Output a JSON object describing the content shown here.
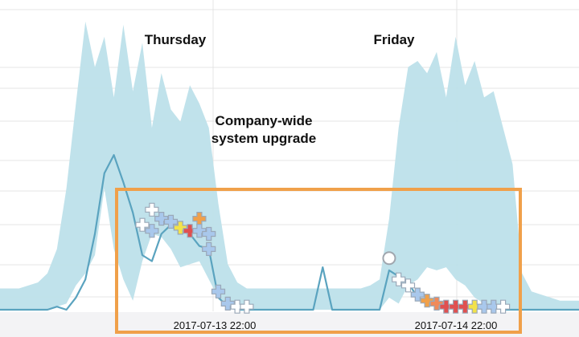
{
  "chart_data": {
    "type": "area",
    "title": "",
    "xlabel": "",
    "ylabel": "",
    "grid": true,
    "x_tick_labels": [
      "2017-07-13 22:00",
      "2017-07-14 22:00"
    ],
    "annotations": {
      "day_labels": [
        "Thursday",
        "Friday"
      ],
      "event_label_lines": [
        "Company-wide",
        "system upgrade"
      ]
    },
    "colors": {
      "band": "#bde0ea",
      "line": "#5aa3bf",
      "highlight_box": "#f0a04a",
      "grid": "#e4e4e4",
      "markers": [
        "#ffffff",
        "#a9c8ec",
        "#f2e24a",
        "#f0a04a",
        "#e05050",
        "#f08a5a"
      ]
    },
    "note": "",
    "band_upper": [
      [
        0,
        7
      ],
      [
        1,
        7
      ],
      [
        2,
        7
      ],
      [
        3,
        8
      ],
      [
        4,
        9
      ],
      [
        5,
        12
      ],
      [
        6,
        20
      ],
      [
        7,
        40
      ],
      [
        8,
        68
      ],
      [
        9,
        95
      ],
      [
        10,
        80
      ],
      [
        11,
        90
      ],
      [
        12,
        70
      ],
      [
        13,
        94
      ],
      [
        14,
        72
      ],
      [
        15,
        88
      ],
      [
        16,
        60
      ],
      [
        17,
        78
      ],
      [
        18,
        66
      ],
      [
        19,
        62
      ],
      [
        20,
        74
      ],
      [
        21,
        68
      ],
      [
        22,
        60
      ],
      [
        23,
        35
      ],
      [
        24,
        15
      ],
      [
        25,
        9
      ],
      [
        26,
        7
      ],
      [
        27,
        7
      ],
      [
        28,
        7
      ],
      [
        29,
        7
      ],
      [
        30,
        7
      ],
      [
        31,
        7
      ],
      [
        32,
        7
      ],
      [
        33,
        7
      ],
      [
        34,
        7
      ],
      [
        35,
        7
      ],
      [
        36,
        7
      ],
      [
        37,
        7
      ],
      [
        38,
        7
      ],
      [
        39,
        8
      ],
      [
        40,
        10
      ],
      [
        41,
        30
      ],
      [
        42,
        60
      ],
      [
        43,
        80
      ],
      [
        44,
        82
      ],
      [
        45,
        78
      ],
      [
        46,
        85
      ],
      [
        47,
        70
      ],
      [
        48,
        90
      ],
      [
        49,
        74
      ],
      [
        50,
        82
      ],
      [
        51,
        70
      ],
      [
        52,
        72
      ],
      [
        53,
        60
      ],
      [
        54,
        48
      ],
      [
        55,
        12
      ],
      [
        56,
        6
      ],
      [
        57,
        5
      ],
      [
        58,
        4
      ],
      [
        59,
        3
      ],
      [
        60,
        3
      ],
      [
        61,
        3
      ]
    ],
    "band_lower": [
      [
        0,
        0
      ],
      [
        5,
        0
      ],
      [
        6,
        1
      ],
      [
        7,
        2
      ],
      [
        8,
        8
      ],
      [
        9,
        12
      ],
      [
        10,
        18
      ],
      [
        11,
        40
      ],
      [
        12,
        20
      ],
      [
        13,
        10
      ],
      [
        14,
        3
      ],
      [
        15,
        16
      ],
      [
        16,
        25
      ],
      [
        17,
        24
      ],
      [
        18,
        20
      ],
      [
        19,
        14
      ],
      [
        20,
        15
      ],
      [
        21,
        16
      ],
      [
        22,
        10
      ],
      [
        23,
        4
      ],
      [
        24,
        1
      ],
      [
        25,
        0
      ],
      [
        40,
        0
      ],
      [
        41,
        4
      ],
      [
        42,
        2
      ],
      [
        43,
        8
      ],
      [
        44,
        10
      ],
      [
        45,
        14
      ],
      [
        46,
        13
      ],
      [
        47,
        14
      ],
      [
        48,
        10
      ],
      [
        49,
        8
      ],
      [
        50,
        4
      ],
      [
        51,
        2
      ],
      [
        52,
        1
      ],
      [
        53,
        0
      ],
      [
        61,
        0
      ]
    ],
    "series": [
      {
        "values": [
          [
            0,
            0
          ],
          [
            1,
            0
          ],
          [
            2,
            0
          ],
          [
            3,
            0
          ],
          [
            4,
            0
          ],
          [
            5,
            0
          ],
          [
            6,
            1
          ],
          [
            7,
            0
          ],
          [
            8,
            4
          ],
          [
            9,
            10
          ],
          [
            10,
            25
          ],
          [
            11,
            45
          ],
          [
            12,
            51
          ],
          [
            13,
            42
          ],
          [
            14,
            32
          ],
          [
            15,
            18
          ],
          [
            16,
            16
          ],
          [
            17,
            25
          ],
          [
            18,
            28
          ],
          [
            19,
            26
          ],
          [
            20,
            25
          ],
          [
            21,
            21
          ],
          [
            22,
            20
          ],
          [
            23,
            4
          ],
          [
            24,
            1
          ],
          [
            25,
            0
          ],
          [
            26,
            0
          ],
          [
            27,
            0
          ],
          [
            28,
            0
          ],
          [
            29,
            0
          ],
          [
            30,
            0
          ],
          [
            31,
            0
          ],
          [
            32,
            0
          ],
          [
            33,
            0
          ],
          [
            34,
            14
          ],
          [
            35,
            0
          ],
          [
            36,
            0
          ],
          [
            37,
            0
          ],
          [
            38,
            0
          ],
          [
            39,
            0
          ],
          [
            40,
            0
          ],
          [
            41,
            13
          ],
          [
            42,
            11
          ],
          [
            43,
            9
          ],
          [
            44,
            4
          ],
          [
            45,
            3
          ],
          [
            46,
            2
          ],
          [
            47,
            1
          ],
          [
            48,
            1
          ],
          [
            49,
            1
          ],
          [
            50,
            1
          ],
          [
            51,
            1
          ],
          [
            52,
            1
          ],
          [
            53,
            0
          ],
          [
            54,
            0
          ],
          [
            55,
            0
          ],
          [
            56,
            0
          ],
          [
            57,
            0
          ],
          [
            58,
            0
          ],
          [
            59,
            0
          ],
          [
            60,
            0
          ],
          [
            61,
            0
          ]
        ]
      }
    ],
    "markers": [
      [
        16,
        33,
        0
      ],
      [
        15,
        28,
        0
      ],
      [
        16,
        26,
        1
      ],
      [
        17,
        30,
        1
      ],
      [
        18,
        29,
        1
      ],
      [
        19,
        27,
        2
      ],
      [
        20,
        26,
        4
      ],
      [
        21,
        30,
        3
      ],
      [
        21,
        26,
        1
      ],
      [
        22,
        25,
        1
      ],
      [
        22,
        20,
        1
      ],
      [
        23,
        6,
        1
      ],
      [
        24,
        2,
        1
      ],
      [
        25,
        1,
        0
      ],
      [
        26,
        1,
        0
      ],
      [
        42,
        10,
        0
      ],
      [
        43,
        8,
        0
      ],
      [
        44,
        5,
        1
      ],
      [
        45,
        3,
        3
      ],
      [
        46,
        2,
        5
      ],
      [
        47,
        1,
        4
      ],
      [
        48,
        1,
        4
      ],
      [
        49,
        1,
        4
      ],
      [
        50,
        1,
        2
      ],
      [
        51,
        1,
        1
      ],
      [
        52,
        1,
        1
      ],
      [
        53,
        1,
        0
      ]
    ],
    "xlim": [
      0,
      61
    ],
    "ylim": [
      0,
      100
    ]
  }
}
